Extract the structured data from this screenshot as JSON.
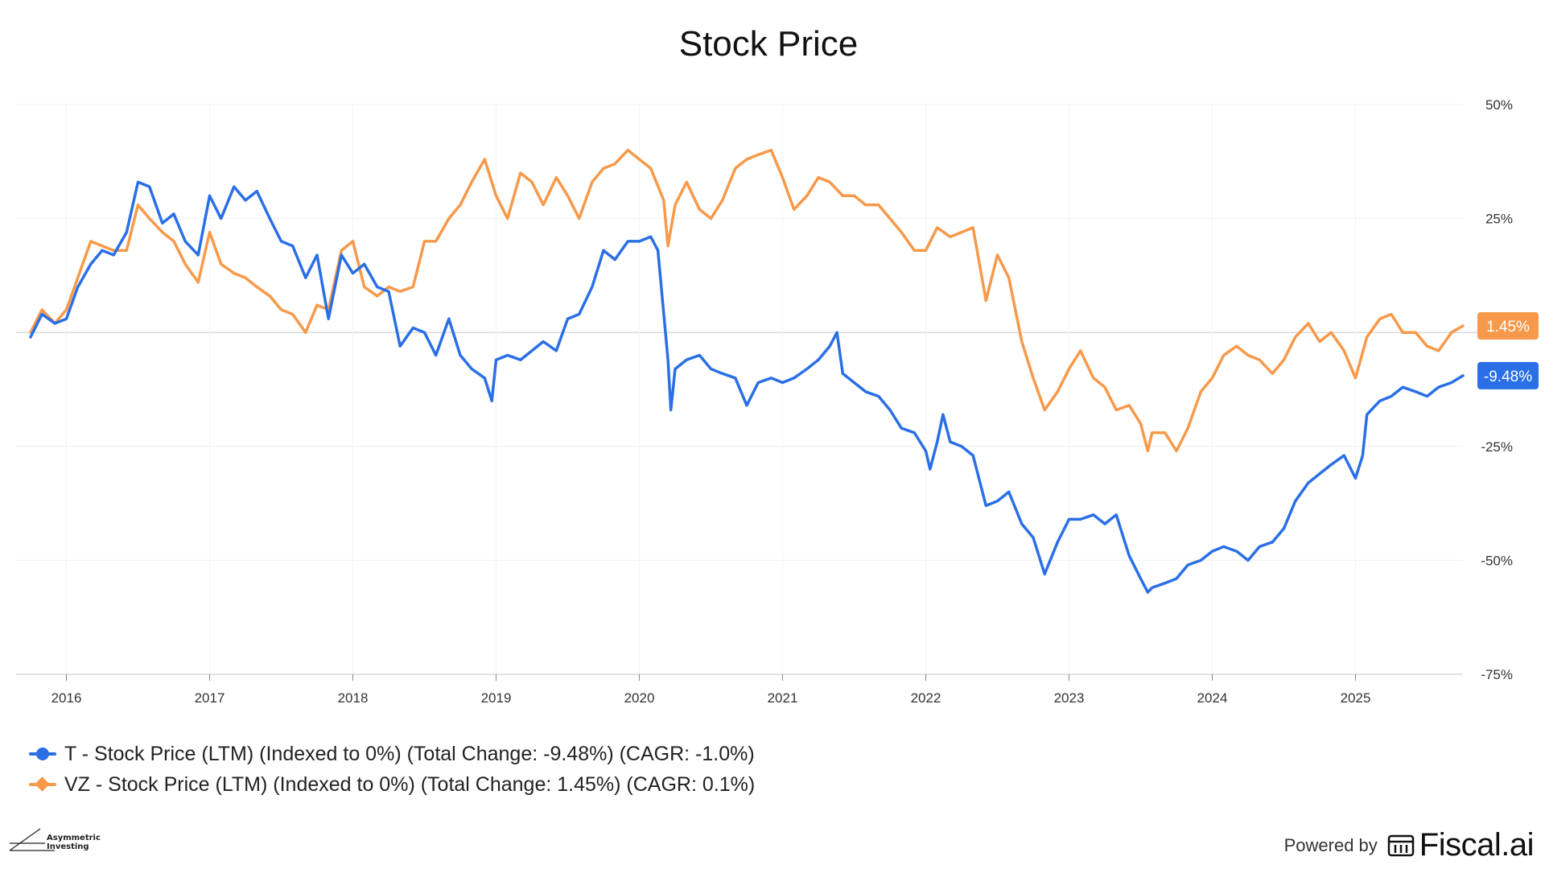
{
  "title": "Stock Price",
  "chart_data": {
    "type": "line",
    "title": "Stock Price",
    "xlabel": "",
    "ylabel": "",
    "x_ticks": [
      "2016",
      "2017",
      "2018",
      "2019",
      "2020",
      "2021",
      "2022",
      "2023",
      "2024",
      "2025"
    ],
    "y_ticks": [
      "50%",
      "25%",
      "-25%",
      "-50%",
      "-75%"
    ],
    "ylim": [
      -75,
      50
    ],
    "xlim": [
      2015.75,
      2025.75
    ],
    "grid": true,
    "baseline": 0,
    "series": [
      {
        "name": "T",
        "color": "#2a6fe6",
        "end_label": "-9.48%",
        "points": [
          [
            2015.75,
            -1
          ],
          [
            2015.83,
            4
          ],
          [
            2015.92,
            2
          ],
          [
            2016.0,
            3
          ],
          [
            2016.08,
            10
          ],
          [
            2016.17,
            15
          ],
          [
            2016.25,
            18
          ],
          [
            2016.33,
            17
          ],
          [
            2016.42,
            22
          ],
          [
            2016.5,
            33
          ],
          [
            2016.58,
            32
          ],
          [
            2016.67,
            24
          ],
          [
            2016.75,
            26
          ],
          [
            2016.83,
            20
          ],
          [
            2016.92,
            17
          ],
          [
            2017.0,
            30
          ],
          [
            2017.08,
            25
          ],
          [
            2017.17,
            32
          ],
          [
            2017.25,
            29
          ],
          [
            2017.33,
            31
          ],
          [
            2017.42,
            25
          ],
          [
            2017.5,
            20
          ],
          [
            2017.58,
            19
          ],
          [
            2017.67,
            12
          ],
          [
            2017.75,
            17
          ],
          [
            2017.83,
            3
          ],
          [
            2017.92,
            17
          ],
          [
            2018.0,
            13
          ],
          [
            2018.08,
            15
          ],
          [
            2018.17,
            10
          ],
          [
            2018.25,
            9
          ],
          [
            2018.33,
            -3
          ],
          [
            2018.42,
            1
          ],
          [
            2018.5,
            0
          ],
          [
            2018.58,
            -5
          ],
          [
            2018.67,
            3
          ],
          [
            2018.75,
            -5
          ],
          [
            2018.83,
            -8
          ],
          [
            2018.92,
            -10
          ],
          [
            2018.97,
            -15
          ],
          [
            2019.0,
            -6
          ],
          [
            2019.08,
            -5
          ],
          [
            2019.17,
            -6
          ],
          [
            2019.25,
            -4
          ],
          [
            2019.33,
            -2
          ],
          [
            2019.42,
            -4
          ],
          [
            2019.5,
            3
          ],
          [
            2019.58,
            4
          ],
          [
            2019.67,
            10
          ],
          [
            2019.75,
            18
          ],
          [
            2019.83,
            16
          ],
          [
            2019.92,
            20
          ],
          [
            2020.0,
            20
          ],
          [
            2020.08,
            21
          ],
          [
            2020.13,
            18
          ],
          [
            2020.2,
            -6
          ],
          [
            2020.22,
            -17
          ],
          [
            2020.25,
            -8
          ],
          [
            2020.33,
            -6
          ],
          [
            2020.42,
            -5
          ],
          [
            2020.5,
            -8
          ],
          [
            2020.58,
            -9
          ],
          [
            2020.67,
            -10
          ],
          [
            2020.75,
            -16
          ],
          [
            2020.83,
            -11
          ],
          [
            2020.92,
            -10
          ],
          [
            2021.0,
            -11
          ],
          [
            2021.08,
            -10
          ],
          [
            2021.17,
            -8
          ],
          [
            2021.25,
            -6
          ],
          [
            2021.33,
            -3
          ],
          [
            2021.38,
            0
          ],
          [
            2021.42,
            -9
          ],
          [
            2021.5,
            -11
          ],
          [
            2021.58,
            -13
          ],
          [
            2021.67,
            -14
          ],
          [
            2021.75,
            -17
          ],
          [
            2021.83,
            -21
          ],
          [
            2021.92,
            -22
          ],
          [
            2022.0,
            -26
          ],
          [
            2022.03,
            -30
          ],
          [
            2022.08,
            -24
          ],
          [
            2022.12,
            -18
          ],
          [
            2022.17,
            -24
          ],
          [
            2022.25,
            -25
          ],
          [
            2022.33,
            -27
          ],
          [
            2022.42,
            -38
          ],
          [
            2022.5,
            -37
          ],
          [
            2022.58,
            -35
          ],
          [
            2022.67,
            -42
          ],
          [
            2022.75,
            -45
          ],
          [
            2022.83,
            -53
          ],
          [
            2022.92,
            -46
          ],
          [
            2023.0,
            -41
          ],
          [
            2023.08,
            -41
          ],
          [
            2023.17,
            -40
          ],
          [
            2023.25,
            -42
          ],
          [
            2023.33,
            -40
          ],
          [
            2023.38,
            -45
          ],
          [
            2023.42,
            -49
          ],
          [
            2023.5,
            -54
          ],
          [
            2023.55,
            -57
          ],
          [
            2023.58,
            -56
          ],
          [
            2023.67,
            -55
          ],
          [
            2023.75,
            -54
          ],
          [
            2023.83,
            -51
          ],
          [
            2023.92,
            -50
          ],
          [
            2024.0,
            -48
          ],
          [
            2024.08,
            -47
          ],
          [
            2024.17,
            -48
          ],
          [
            2024.25,
            -50
          ],
          [
            2024.33,
            -47
          ],
          [
            2024.42,
            -46
          ],
          [
            2024.5,
            -43
          ],
          [
            2024.58,
            -37
          ],
          [
            2024.67,
            -33
          ],
          [
            2024.75,
            -31
          ],
          [
            2024.83,
            -29
          ],
          [
            2024.92,
            -27
          ],
          [
            2025.0,
            -32
          ],
          [
            2025.05,
            -27
          ],
          [
            2025.08,
            -18
          ],
          [
            2025.17,
            -15
          ],
          [
            2025.25,
            -14
          ],
          [
            2025.33,
            -12
          ],
          [
            2025.42,
            -13
          ],
          [
            2025.5,
            -14
          ],
          [
            2025.58,
            -12
          ],
          [
            2025.67,
            -11
          ],
          [
            2025.75,
            -9.48
          ]
        ]
      },
      {
        "name": "VZ",
        "color": "#f7994a",
        "end_label": "1.45%",
        "points": [
          [
            2015.75,
            0
          ],
          [
            2015.83,
            5
          ],
          [
            2015.92,
            2
          ],
          [
            2016.0,
            5
          ],
          [
            2016.08,
            12
          ],
          [
            2016.17,
            20
          ],
          [
            2016.25,
            19
          ],
          [
            2016.33,
            18
          ],
          [
            2016.42,
            18
          ],
          [
            2016.5,
            28
          ],
          [
            2016.58,
            25
          ],
          [
            2016.67,
            22
          ],
          [
            2016.75,
            20
          ],
          [
            2016.83,
            15
          ],
          [
            2016.92,
            11
          ],
          [
            2017.0,
            22
          ],
          [
            2017.08,
            15
          ],
          [
            2017.17,
            13
          ],
          [
            2017.25,
            12
          ],
          [
            2017.33,
            10
          ],
          [
            2017.42,
            8
          ],
          [
            2017.5,
            5
          ],
          [
            2017.58,
            4
          ],
          [
            2017.67,
            0
          ],
          [
            2017.75,
            6
          ],
          [
            2017.83,
            5
          ],
          [
            2017.92,
            18
          ],
          [
            2018.0,
            20
          ],
          [
            2018.08,
            10
          ],
          [
            2018.17,
            8
          ],
          [
            2018.25,
            10
          ],
          [
            2018.33,
            9
          ],
          [
            2018.42,
            10
          ],
          [
            2018.5,
            20
          ],
          [
            2018.58,
            20
          ],
          [
            2018.67,
            25
          ],
          [
            2018.75,
            28
          ],
          [
            2018.83,
            33
          ],
          [
            2018.92,
            38
          ],
          [
            2019.0,
            30
          ],
          [
            2019.08,
            25
          ],
          [
            2019.17,
            35
          ],
          [
            2019.25,
            33
          ],
          [
            2019.33,
            28
          ],
          [
            2019.42,
            34
          ],
          [
            2019.5,
            30
          ],
          [
            2019.58,
            25
          ],
          [
            2019.67,
            33
          ],
          [
            2019.75,
            36
          ],
          [
            2019.83,
            37
          ],
          [
            2019.92,
            40
          ],
          [
            2020.0,
            38
          ],
          [
            2020.08,
            36
          ],
          [
            2020.17,
            29
          ],
          [
            2020.2,
            19
          ],
          [
            2020.25,
            28
          ],
          [
            2020.33,
            33
          ],
          [
            2020.42,
            27
          ],
          [
            2020.5,
            25
          ],
          [
            2020.58,
            29
          ],
          [
            2020.67,
            36
          ],
          [
            2020.75,
            38
          ],
          [
            2020.83,
            39
          ],
          [
            2020.92,
            40
          ],
          [
            2021.0,
            34
          ],
          [
            2021.08,
            27
          ],
          [
            2021.17,
            30
          ],
          [
            2021.25,
            34
          ],
          [
            2021.33,
            33
          ],
          [
            2021.42,
            30
          ],
          [
            2021.5,
            30
          ],
          [
            2021.58,
            28
          ],
          [
            2021.67,
            28
          ],
          [
            2021.75,
            25
          ],
          [
            2021.83,
            22
          ],
          [
            2021.92,
            18
          ],
          [
            2022.0,
            18
          ],
          [
            2022.08,
            23
          ],
          [
            2022.17,
            21
          ],
          [
            2022.25,
            22
          ],
          [
            2022.33,
            23
          ],
          [
            2022.42,
            7
          ],
          [
            2022.5,
            17
          ],
          [
            2022.58,
            12
          ],
          [
            2022.67,
            -2
          ],
          [
            2022.75,
            -10
          ],
          [
            2022.83,
            -17
          ],
          [
            2022.92,
            -13
          ],
          [
            2023.0,
            -8
          ],
          [
            2023.08,
            -4
          ],
          [
            2023.17,
            -10
          ],
          [
            2023.25,
            -12
          ],
          [
            2023.33,
            -17
          ],
          [
            2023.42,
            -16
          ],
          [
            2023.5,
            -20
          ],
          [
            2023.55,
            -26
          ],
          [
            2023.58,
            -22
          ],
          [
            2023.67,
            -22
          ],
          [
            2023.75,
            -26
          ],
          [
            2023.83,
            -21
          ],
          [
            2023.92,
            -13
          ],
          [
            2024.0,
            -10
          ],
          [
            2024.08,
            -5
          ],
          [
            2024.17,
            -3
          ],
          [
            2024.25,
            -5
          ],
          [
            2024.33,
            -6
          ],
          [
            2024.42,
            -9
          ],
          [
            2024.5,
            -6
          ],
          [
            2024.58,
            -1
          ],
          [
            2024.67,
            2
          ],
          [
            2024.75,
            -2
          ],
          [
            2024.83,
            0
          ],
          [
            2024.92,
            -4
          ],
          [
            2025.0,
            -10
          ],
          [
            2025.08,
            -1
          ],
          [
            2025.17,
            3
          ],
          [
            2025.25,
            4
          ],
          [
            2025.33,
            0
          ],
          [
            2025.42,
            0
          ],
          [
            2025.5,
            -3
          ],
          [
            2025.58,
            -4
          ],
          [
            2025.67,
            0
          ],
          [
            2025.75,
            1.45
          ]
        ]
      }
    ]
  },
  "legend": [
    {
      "text": "T - Stock Price (LTM) (Indexed to 0%) (Total Change: -9.48%) (CAGR: -1.0%)",
      "color": "#2a6fe6",
      "marker": "circle"
    },
    {
      "text": "VZ - Stock Price (LTM) (Indexed to 0%) (Total Change: 1.45%) (CAGR: 0.1%)",
      "color": "#f7994a",
      "marker": "diamond"
    }
  ],
  "branding": {
    "left_text": "Asymmetric Investing",
    "powered_by": "Powered by",
    "logo_text": "Fiscal.ai"
  }
}
